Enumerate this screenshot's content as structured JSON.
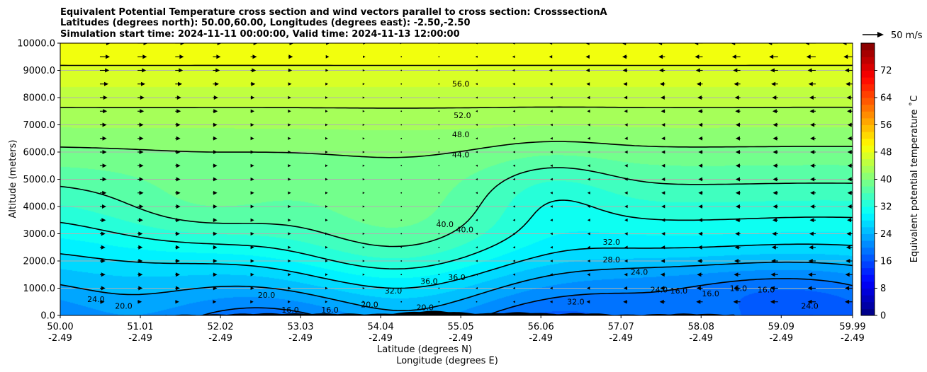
{
  "chart_data": {
    "type": "heatmap",
    "title_lines": [
      "Equivalent Potential Temperature cross section and wind vectors parallel to cross section: CrosssectionA",
      "Latitudes (degrees north): 50.00,60.00, Longitudes (degrees east): -2.50,-2.50",
      "Simulation start time: 2024-11-11 00:00:00, Valid time: 2024-11-13 12:00:00"
    ],
    "ylabel": "Altitude (meters)",
    "xlabel_line1": "Latitude (degrees N)",
    "xlabel_line2": "Longitude (degrees E)",
    "ylim": [
      0,
      10000
    ],
    "xlim": [
      50.0,
      59.99
    ],
    "y_ticks": [
      0,
      1000,
      2000,
      3000,
      4000,
      5000,
      6000,
      7000,
      8000,
      9000,
      10000
    ],
    "y_tick_labels": [
      "0.0",
      "1000.0",
      "2000.0",
      "3000.0",
      "4000.0",
      "5000.0",
      "6000.0",
      "7000.0",
      "8000.0",
      "9000.0",
      "10000.0"
    ],
    "x_ticks": [
      50.0,
      51.01,
      52.02,
      53.03,
      54.04,
      55.05,
      56.06,
      57.07,
      58.08,
      59.09,
      59.99
    ],
    "x_tick_labels_lat": [
      "50.00",
      "51.01",
      "52.02",
      "53.03",
      "54.04",
      "55.05",
      "56.06",
      "57.07",
      "58.08",
      "59.09",
      "59.99"
    ],
    "x_tick_labels_lon": [
      "-2.49",
      "-2.49",
      "-2.49",
      "-2.49",
      "-2.49",
      "-2.49",
      "-2.49",
      "-2.49",
      "-2.49",
      "-2.49",
      "-2.49"
    ],
    "grid": "horizontal",
    "colorbar": {
      "label": "Equivalent potential temperature ˚C",
      "min": 0,
      "max": 80,
      "ticks": [
        0,
        8,
        16,
        24,
        32,
        40,
        48,
        56,
        64,
        72
      ],
      "tick_labels": [
        "0",
        "8",
        "16",
        "24",
        "32",
        "40",
        "48",
        "56",
        "64",
        "72"
      ],
      "colormap": "jet"
    },
    "wind_key_label": "50 m/s",
    "contour_levels": [
      16,
      20,
      24,
      28,
      32,
      36,
      40,
      44,
      48,
      52,
      56
    ],
    "contour_labels": [
      {
        "text": "56.0",
        "lat": 55.05,
        "alt": 8400
      },
      {
        "text": "52.0",
        "lat": 55.07,
        "alt": 7250
      },
      {
        "text": "48.0",
        "lat": 55.05,
        "alt": 6550
      },
      {
        "text": "44.0",
        "lat": 55.05,
        "alt": 5800
      },
      {
        "text": "40.0",
        "lat": 54.85,
        "alt": 3250
      },
      {
        "text": "40.0",
        "lat": 55.1,
        "alt": 3050
      },
      {
        "text": "36.0",
        "lat": 54.65,
        "alt": 1150
      },
      {
        "text": "36.0",
        "lat": 55.0,
        "alt": 1300
      },
      {
        "text": "32.0",
        "lat": 54.2,
        "alt": 800
      },
      {
        "text": "32.0",
        "lat": 56.5,
        "alt": 400
      },
      {
        "text": "32.0",
        "lat": 56.95,
        "alt": 2600
      },
      {
        "text": "28.0",
        "lat": 56.95,
        "alt": 1950
      },
      {
        "text": "24.0",
        "lat": 57.3,
        "alt": 1500
      },
      {
        "text": "24.0",
        "lat": 57.55,
        "alt": 850
      },
      {
        "text": "24.0",
        "lat": 59.45,
        "alt": 250
      },
      {
        "text": "24.0",
        "lat": 50.45,
        "alt": 500
      },
      {
        "text": "20.0",
        "lat": 50.8,
        "alt": 250
      },
      {
        "text": "20.0",
        "lat": 52.6,
        "alt": 650
      },
      {
        "text": "20.0",
        "lat": 53.9,
        "alt": 300
      },
      {
        "text": "20.0",
        "lat": 54.6,
        "alt": 200
      },
      {
        "text": "16.0",
        "lat": 58.2,
        "alt": 700
      },
      {
        "text": "16.0",
        "lat": 58.9,
        "alt": 850
      },
      {
        "text": "16.0",
        "lat": 58.55,
        "alt": 900
      },
      {
        "text": "16.0",
        "lat": 57.8,
        "alt": 800
      },
      {
        "text": "16.0",
        "lat": 52.9,
        "alt": 100
      },
      {
        "text": "16.0",
        "lat": 53.4,
        "alt": 100
      }
    ],
    "wind_profile": [
      {
        "lat": 50.0,
        "u": [
          10,
          14,
          14,
          14,
          16,
          18,
          18,
          18,
          20,
          24,
          26
        ]
      },
      {
        "lat": 51.0,
        "u": [
          8,
          12,
          12,
          12,
          14,
          14,
          14,
          14,
          16,
          20,
          24
        ]
      },
      {
        "lat": 52.0,
        "u": [
          6,
          10,
          10,
          10,
          10,
          10,
          10,
          10,
          12,
          16,
          20
        ]
      },
      {
        "lat": 53.0,
        "u": [
          4,
          6,
          6,
          6,
          6,
          6,
          6,
          6,
          6,
          8,
          12
        ]
      },
      {
        "lat": 54.0,
        "u": [
          2,
          2,
          2,
          2,
          2,
          2,
          2,
          2,
          2,
          2,
          4
        ]
      },
      {
        "lat": 55.0,
        "u": [
          0,
          -2,
          -2,
          -2,
          -2,
          -2,
          -2,
          -2,
          -2,
          -2,
          -2
        ]
      },
      {
        "lat": 56.0,
        "u": [
          -4,
          -4,
          -4,
          -4,
          -4,
          -4,
          -4,
          -4,
          -4,
          -6,
          -6
        ]
      },
      {
        "lat": 57.0,
        "u": [
          -10,
          -8,
          -6,
          -6,
          -6,
          -6,
          -6,
          -6,
          -8,
          -10,
          -12
        ]
      },
      {
        "lat": 58.0,
        "u": [
          -16,
          -14,
          -12,
          -10,
          -10,
          -10,
          -10,
          -10,
          -12,
          -16,
          -20
        ]
      },
      {
        "lat": 59.0,
        "u": [
          -18,
          -18,
          -16,
          -14,
          -12,
          -12,
          -12,
          -12,
          -14,
          -18,
          -24
        ]
      },
      {
        "lat": 59.99,
        "u": [
          -20,
          -20,
          -18,
          -16,
          -14,
          -14,
          -14,
          -14,
          -16,
          -20,
          -26
        ]
      }
    ]
  }
}
